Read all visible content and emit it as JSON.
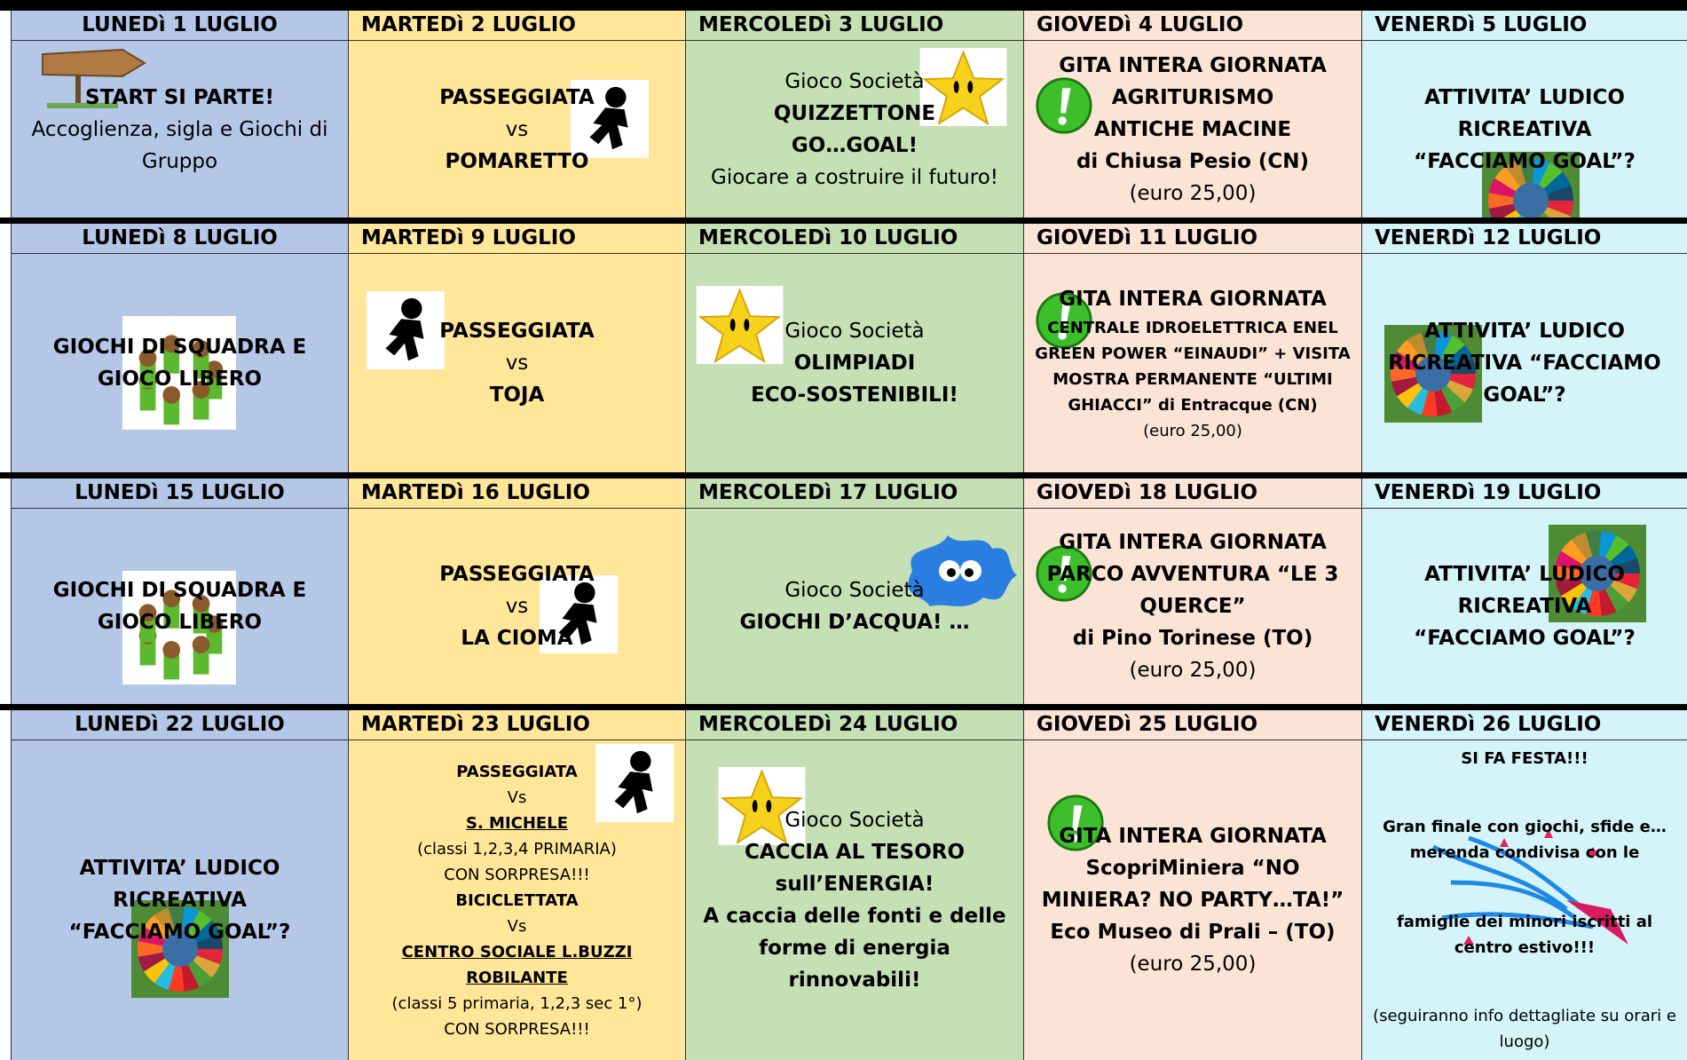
{
  "weeks": [
    {
      "days": [
        {
          "header": "LUNEDì 1 LUGLIO",
          "lines": [
            {
              "text": "START SI PARTE!",
              "b": true
            },
            {
              "text": "Accoglienza, sigla e Giochi di Gruppo"
            }
          ]
        },
        {
          "header": "MARTEDì 2 LUGLIO",
          "lines": [
            {
              "text": "PASSEGGIATA",
              "b": true
            },
            {
              "text": "vs"
            },
            {
              "text": "POMARETTO",
              "b": true
            }
          ]
        },
        {
          "header": "MERCOLEDì 3 LUGLIO",
          "lines": [
            {
              "text": "Gioco Società"
            },
            {
              "text": "QUIZZETTONE",
              "b": true
            },
            {
              "text": "GO…GOAL!",
              "b": true
            },
            {
              "text": "Giocare a costruire il futuro!"
            }
          ]
        },
        {
          "header": "GIOVEDì 4 LUGLIO",
          "lines": [
            {
              "text": "GITA INTERA GIORNATA",
              "b": true
            },
            {
              "text": "AGRITURISMO",
              "b": true
            },
            {
              "text": "ANTICHE MACINE",
              "b": true
            },
            {
              "text": "di Chiusa Pesio (CN)",
              "b": true
            },
            {
              "text": "(euro 25,00)"
            }
          ]
        },
        {
          "header": "VENERDì 5 LUGLIO",
          "lines": [
            {
              "text": "ATTIVITA’ LUDICO",
              "b": true
            },
            {
              "text": "RICREATIVA",
              "b": true
            },
            {
              "text": "“FACCIAMO GOAL”?",
              "b": true
            }
          ]
        }
      ]
    },
    {
      "days": [
        {
          "header": "LUNEDì 8 LUGLIO",
          "lines": [
            {
              "text": "GIOCHI DI SQUADRA E",
              "b": true
            },
            {
              "text": "GIOCO LIBERO",
              "b": true
            }
          ]
        },
        {
          "header": "MARTEDì 9 LUGLIO",
          "lines": [
            {
              "text": "PASSEGGIATA",
              "b": true
            },
            {
              "text": "vs"
            },
            {
              "text": "TOJA",
              "b": true
            }
          ]
        },
        {
          "header": "MERCOLEDì 10 LUGLIO",
          "lines": [
            {
              "text": "Gioco Società"
            },
            {
              "text": "OLIMPIADI",
              "b": true
            },
            {
              "text": "ECO-SOSTENIBILI!",
              "b": true
            }
          ]
        },
        {
          "header": "GIOVEDì 11 LUGLIO",
          "lines": [
            {
              "text": "GITA INTERA GIORNATA",
              "b": true
            },
            {
              "text": "CENTRALE IDROELETTRICA ENEL GREEN POWER “EINAUDI” + VISITA MOSTRA PERMANENTE “ULTIMI GHIACCI” di Entracque (CN)",
              "b": true,
              "s": true
            },
            {
              "text": "(euro 25,00)",
              "s": true
            }
          ]
        },
        {
          "header": "VENERDì 12 LUGLIO",
          "lines": [
            {
              "text": "ATTIVITA’ LUDICO",
              "b": true
            },
            {
              "text": "RICREATIVA “FACCIAMO GOAL”?",
              "b": true
            }
          ]
        }
      ]
    },
    {
      "days": [
        {
          "header": "LUNEDì 15 LUGLIO",
          "lines": [
            {
              "text": "GIOCHI DI SQUADRA E",
              "b": true
            },
            {
              "text": "GIOCO LIBERO",
              "b": true
            }
          ]
        },
        {
          "header": "MARTEDì 16 LUGLIO",
          "lines": [
            {
              "text": "PASSEGGIATA",
              "b": true
            },
            {
              "text": "vs"
            },
            {
              "text": "LA CIOMA",
              "b": true
            }
          ]
        },
        {
          "header": "MERCOLEDì 17 LUGLIO",
          "lines": [
            {
              "text": "Gioco Società"
            },
            {
              "text": "GIOCHI D’ACQUA! …",
              "b": true
            }
          ]
        },
        {
          "header": "GIOVEDì 18 LUGLIO",
          "lines": [
            {
              "text": "GITA INTERA GIORNATA",
              "b": true
            },
            {
              "text": "PARCO AVVENTURA “LE 3 QUERCE”",
              "b": true
            },
            {
              "text": "di Pino Torinese (TO)",
              "b": true
            },
            {
              "text": "(euro 25,00)"
            }
          ]
        },
        {
          "header": "VENERDì 19 LUGLIO",
          "lines": [
            {
              "text": "ATTIVITA’ LUDICO RICREATIVA",
              "b": true
            },
            {
              "text": "“FACCIAMO GOAL”?",
              "b": true
            }
          ]
        }
      ]
    },
    {
      "days": [
        {
          "header": "LUNEDì 22 LUGLIO",
          "lines": [
            {
              "text": "ATTIVITA’ LUDICO",
              "b": true
            },
            {
              "text": "RICREATIVA",
              "b": true
            },
            {
              "text": "“FACCIAMO GOAL”?",
              "b": true
            }
          ]
        },
        {
          "header": "MARTEDì 23 LUGLIO",
          "lines": [
            {
              "text": "PASSEGGIATA",
              "b": true,
              "s": true
            },
            {
              "text": "Vs",
              "s": true
            },
            {
              "text": "S. MICHELE",
              "b": true,
              "s": true,
              "u": true
            },
            {
              "text": "(classi 1,2,3,4 PRIMARIA)",
              "s": true
            },
            {
              "text": "CON SORPRESA!!!",
              "s": true
            },
            {
              "text": "BICICLETTATA",
              "b": true,
              "s": true
            },
            {
              "text": "Vs",
              "s": true
            },
            {
              "text": "CENTRO SOCIALE L.BUZZI ROBILANTE",
              "b": true,
              "s": true,
              "u": true
            },
            {
              "text": "(classi 5 primaria, 1,2,3 sec 1°)",
              "s": true
            },
            {
              "text": "CON SORPRESA!!!",
              "s": true
            }
          ]
        },
        {
          "header": "MERCOLEDì 24 LUGLIO",
          "lines": [
            {
              "text": "Gioco Società"
            },
            {
              "text": "CACCIA AL TESORO sull’ENERGIA!",
              "b": true
            },
            {
              "text": "A caccia delle fonti e delle forme di energia rinnovabili!",
              "b": true
            }
          ]
        },
        {
          "header": "GIOVEDì 25 LUGLIO",
          "lines": [
            {
              "text": "GITA INTERA GIORNATA",
              "b": true
            },
            {
              "text": "ScopriMiniera “NO MINIERA? NO PARTY…TA!”",
              "b": true
            },
            {
              "text": "Eco Museo di Prali – (TO)",
              "b": true
            },
            {
              "text": "(euro 25,00)"
            }
          ]
        },
        {
          "header": "VENERDì 26 LUGLIO",
          "lines": [
            {
              "text": "SI FA FESTA!!!",
              "b": true,
              "s": true
            },
            {
              "text": "Gran finale con giochi, sfide e…merenda condivisa con le",
              "b": true,
              "s": true
            },
            {
              "text": "famiglie dei minori iscritti al centro estivo!!!",
              "b": true,
              "s": true
            },
            {
              "text": "(seguiranno info dettagliate su orari e luogo)",
              "s": true
            }
          ]
        }
      ]
    }
  ]
}
